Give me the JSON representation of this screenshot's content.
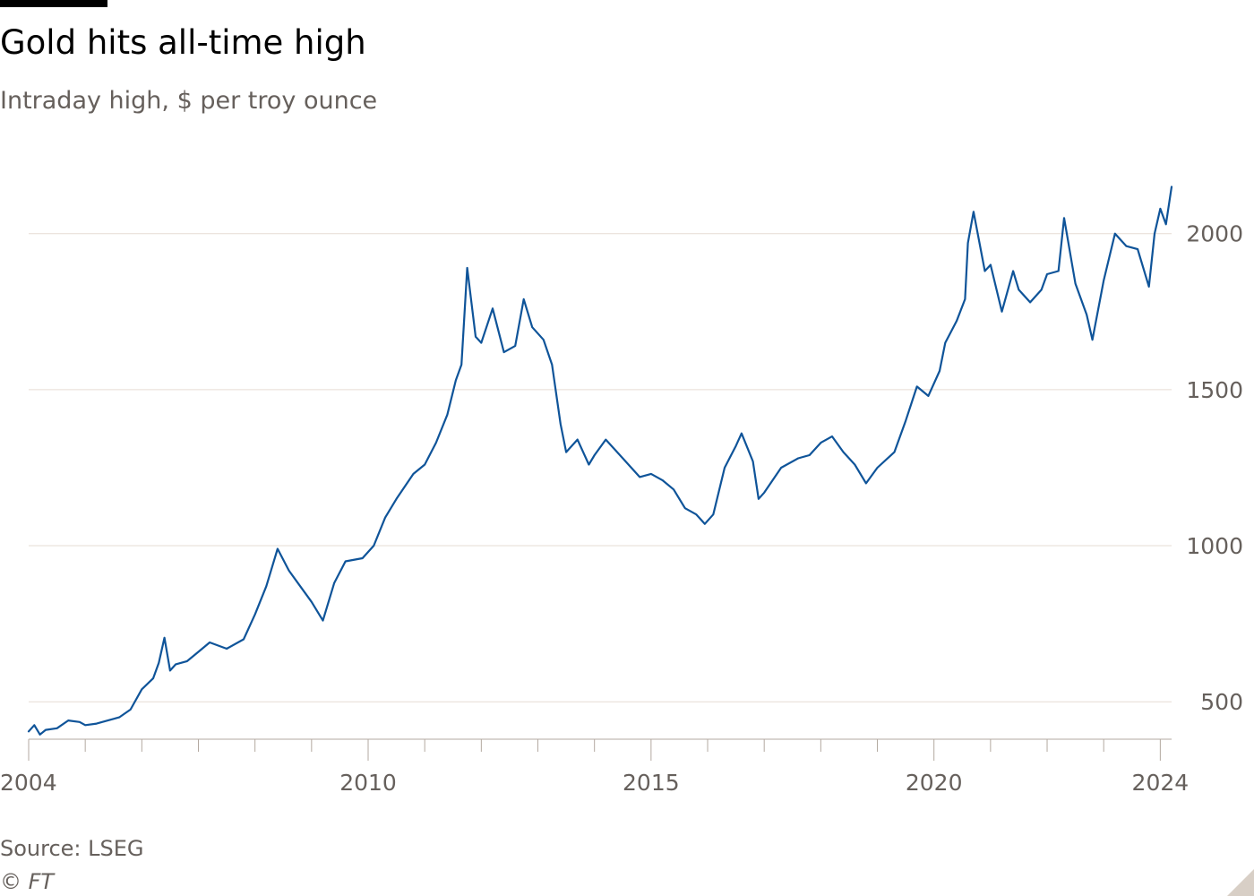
{
  "chart_data": {
    "type": "line",
    "title": "Gold hits all-time high",
    "subtitle": "Intraday high, $ per troy ounce",
    "xlabel": "",
    "ylabel": "",
    "xlim": [
      2004.0,
      2024.2
    ],
    "ylim": [
      380,
      2160
    ],
    "yticks": [
      500,
      1000,
      1500,
      2000
    ],
    "xtick_labels": [
      2004,
      2010,
      2015,
      2020,
      2024
    ],
    "grid": true,
    "legend": "none",
    "line_color": "#0f5499",
    "series": [
      {
        "x": [
          2004.0,
          2004.1,
          2004.2,
          2004.3,
          2004.5,
          2004.7,
          2004.9,
          2005.0,
          2005.2,
          2005.4,
          2005.6,
          2005.8,
          2006.0,
          2006.2,
          2006.3,
          2006.4,
          2006.5,
          2006.6,
          2006.8,
          2007.0,
          2007.2,
          2007.5,
          2007.8,
          2008.0,
          2008.2,
          2008.4,
          2008.6,
          2008.8,
          2009.0,
          2009.2,
          2009.4,
          2009.6,
          2009.9,
          2010.1,
          2010.3,
          2010.5,
          2010.8,
          2011.0,
          2011.2,
          2011.4,
          2011.55,
          2011.65,
          2011.75,
          2011.9,
          2012.0,
          2012.2,
          2012.4,
          2012.6,
          2012.75,
          2012.9,
          2013.1,
          2013.25,
          2013.4,
          2013.5,
          2013.7,
          2013.9,
          2014.0,
          2014.2,
          2014.5,
          2014.8,
          2015.0,
          2015.2,
          2015.4,
          2015.6,
          2015.8,
          2015.95,
          2016.1,
          2016.3,
          2016.5,
          2016.6,
          2016.8,
          2016.9,
          2017.0,
          2017.3,
          2017.6,
          2017.8,
          2018.0,
          2018.2,
          2018.4,
          2018.6,
          2018.8,
          2019.0,
          2019.3,
          2019.5,
          2019.7,
          2019.9,
          2020.1,
          2020.2,
          2020.4,
          2020.55,
          2020.6,
          2020.7,
          2020.9,
          2021.0,
          2021.2,
          2021.4,
          2021.5,
          2021.7,
          2021.9,
          2022.0,
          2022.2,
          2022.3,
          2022.5,
          2022.7,
          2022.8,
          2023.0,
          2023.2,
          2023.4,
          2023.6,
          2023.8,
          2023.9,
          2024.0,
          2024.1,
          2024.2
        ],
        "values": [
          405,
          425,
          395,
          410,
          415,
          440,
          435,
          425,
          430,
          440,
          450,
          475,
          540,
          575,
          625,
          705,
          600,
          620,
          630,
          660,
          690,
          670,
          700,
          780,
          870,
          990,
          920,
          870,
          820,
          760,
          880,
          950,
          960,
          1000,
          1090,
          1150,
          1230,
          1260,
          1330,
          1420,
          1530,
          1580,
          1890,
          1670,
          1650,
          1760,
          1620,
          1640,
          1790,
          1700,
          1660,
          1580,
          1390,
          1300,
          1340,
          1260,
          1290,
          1340,
          1280,
          1220,
          1230,
          1210,
          1180,
          1120,
          1100,
          1070,
          1100,
          1250,
          1320,
          1360,
          1270,
          1150,
          1170,
          1250,
          1280,
          1290,
          1330,
          1350,
          1300,
          1260,
          1200,
          1250,
          1300,
          1400,
          1510,
          1480,
          1560,
          1650,
          1720,
          1790,
          1970,
          2070,
          1880,
          1900,
          1750,
          1880,
          1820,
          1780,
          1820,
          1870,
          1880,
          2050,
          1840,
          1740,
          1660,
          1850,
          2000,
          1960,
          1950,
          1830,
          2000,
          2080,
          2030,
          2150
        ]
      }
    ]
  },
  "footer": {
    "source": "Source: LSEG",
    "credit": "© FT"
  }
}
